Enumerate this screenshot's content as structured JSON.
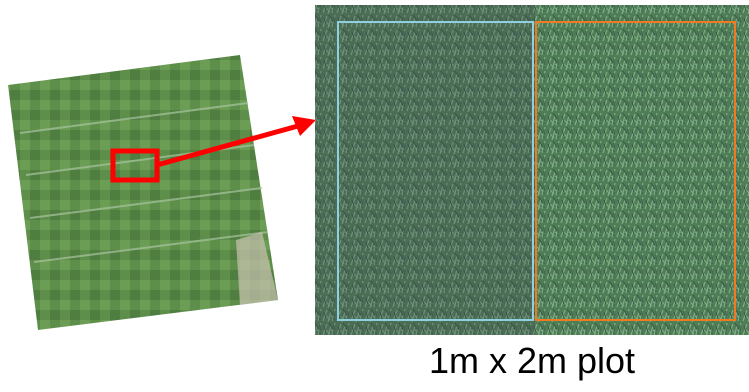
{
  "caption": "1m x 2m plot"
}
